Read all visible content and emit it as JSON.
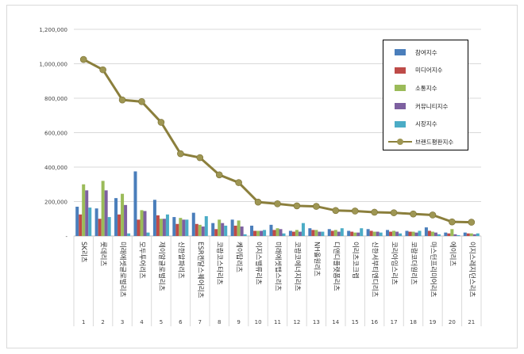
{
  "chart_data": {
    "type": "bar+line",
    "ylim": [
      0,
      1200000
    ],
    "y_ticks": [
      "-",
      "200,000",
      "400,000",
      "600,000",
      "800,000",
      "1,000,000",
      "1,200,000"
    ],
    "x_numbers": [
      "1",
      "2",
      "3",
      "4",
      "5",
      "6",
      "7",
      "8",
      "9",
      "10",
      "11",
      "12",
      "13",
      "14",
      "15",
      "16",
      "17",
      "18",
      "19",
      "20",
      "21"
    ],
    "categories": [
      "SK리츠",
      "롯데리츠",
      "미래에셋글로벌리츠",
      "모두투어리츠",
      "제이알글로벌리츠",
      "신한알파리츠",
      "ESR켄달스퀘어리츠",
      "코람코스타리츠",
      "케이탑리츠",
      "이지스밸류리츠",
      "미래에셋맵스리츠",
      "코람코에너지리츠",
      "NH올원리츠",
      "디앤디플랫폼리츠",
      "이리츠코크렙",
      "신한서부티엔디리츠",
      "코리아임스리츠",
      "코람코더원리츠",
      "마스턴프리미어리츠",
      "에이리츠",
      "이지스레지던스리츠"
    ],
    "grid": true,
    "legend_position": "right",
    "series": [
      {
        "name": "참여지수",
        "kind": "bar",
        "color": "#4a7ebb",
        "values": [
          170000,
          160000,
          220000,
          375000,
          210000,
          110000,
          135000,
          75000,
          95000,
          60000,
          65000,
          30000,
          45000,
          40000,
          30000,
          40000,
          35000,
          30000,
          50000,
          20000,
          20000
        ]
      },
      {
        "name": "미디어지수",
        "kind": "bar",
        "color": "#be4b48",
        "values": [
          125000,
          100000,
          125000,
          95000,
          120000,
          70000,
          70000,
          40000,
          60000,
          30000,
          35000,
          25000,
          35000,
          30000,
          25000,
          30000,
          25000,
          25000,
          30000,
          15000,
          15000
        ]
      },
      {
        "name": "소통지수",
        "kind": "bar",
        "color": "#9bbb59",
        "values": [
          300000,
          320000,
          245000,
          150000,
          100000,
          105000,
          65000,
          95000,
          90000,
          30000,
          45000,
          35000,
          35000,
          35000,
          20000,
          25000,
          30000,
          25000,
          25000,
          40000,
          15000
        ]
      },
      {
        "name": "커뮤니티지수",
        "kind": "bar",
        "color": "#7d60a0",
        "values": [
          265000,
          265000,
          180000,
          145000,
          100000,
          95000,
          55000,
          75000,
          55000,
          30000,
          40000,
          25000,
          25000,
          25000,
          20000,
          25000,
          25000,
          20000,
          20000,
          10000,
          10000
        ]
      },
      {
        "name": "시장지수",
        "kind": "bar",
        "color": "#4bacc6",
        "values": [
          165000,
          110000,
          15000,
          20000,
          125000,
          95000,
          115000,
          60000,
          10000,
          35000,
          15000,
          75000,
          25000,
          45000,
          45000,
          20000,
          15000,
          30000,
          10000,
          5000,
          15000
        ]
      },
      {
        "name": "브랜드평판지수",
        "kind": "line",
        "color": "#8b7f3c",
        "marker_color": "#9e9653",
        "values": [
          1025000,
          965000,
          790000,
          780000,
          660000,
          478000,
          455000,
          355000,
          310000,
          197000,
          187000,
          175000,
          172000,
          148000,
          145000,
          138000,
          135000,
          128000,
          122000,
          82000,
          80000
        ]
      }
    ]
  }
}
